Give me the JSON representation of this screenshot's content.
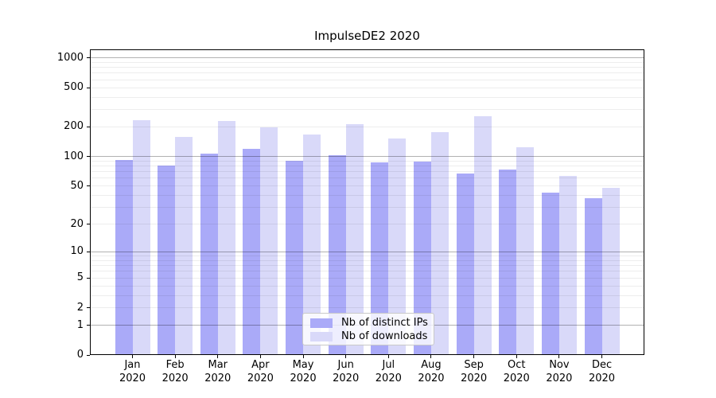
{
  "title": "ImpulseDE2 2020",
  "chart_data": {
    "type": "bar",
    "title": "ImpulseDE2 2020",
    "categories": [
      "Jan",
      "Feb",
      "Mar",
      "Apr",
      "May",
      "Jun",
      "Jul",
      "Aug",
      "Sep",
      "Oct",
      "Nov",
      "Dec"
    ],
    "year": "2020",
    "series": [
      {
        "name": "Nb of distinct IPs",
        "color": "#aaaaf8",
        "values": [
          92,
          81,
          108,
          119,
          91,
          104,
          87,
          89,
          67,
          73,
          43,
          37
        ]
      },
      {
        "name": "Nb of downloads",
        "color": "#d9d9f9",
        "values": [
          235,
          159,
          229,
          198,
          167,
          213,
          154,
          177,
          257,
          124,
          63,
          48
        ]
      }
    ],
    "xlabel": "",
    "ylabel": "",
    "yscale": "log1p",
    "ylim": [
      0,
      1220
    ],
    "yticks": [
      0,
      1,
      2,
      5,
      10,
      20,
      50,
      100,
      200,
      500,
      1000
    ],
    "grid": {
      "major_lines": [
        1,
        10,
        100,
        1000
      ],
      "minor_lines": [
        2,
        3,
        4,
        5,
        6,
        7,
        8,
        9,
        20,
        30,
        40,
        50,
        60,
        70,
        80,
        90,
        200,
        300,
        400,
        500,
        600,
        700,
        800,
        900
      ],
      "major_color": "#b3b3b3",
      "minor_color": "#ededed"
    },
    "legend": {
      "position": "bottom-center",
      "entries": [
        "Nb of distinct IPs",
        "Nb of downloads"
      ]
    },
    "axis_color": "#000000",
    "background": "#ffffff"
  }
}
